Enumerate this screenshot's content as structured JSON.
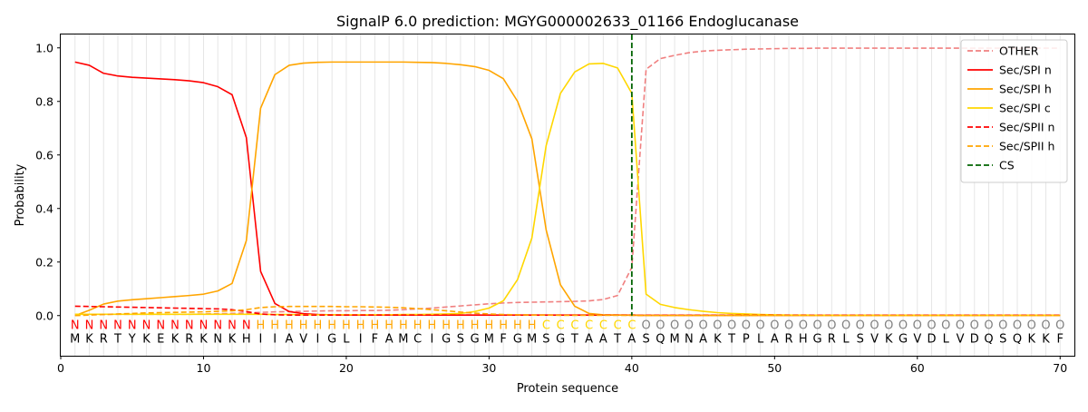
{
  "chart_data": {
    "type": "line",
    "title": "SignalP 6.0 prediction: MGYG000002633_01166 Endoglucanase",
    "xlabel": "Protein sequence",
    "ylabel": "Probability",
    "xlim": [
      0,
      71
    ],
    "ylim": [
      -0.15,
      1.05
    ],
    "x_ticks": [
      "0",
      "10",
      "20",
      "30",
      "40",
      "50",
      "60",
      "70"
    ],
    "y_ticks": [
      "0.0",
      "0.2",
      "0.4",
      "0.6",
      "0.8",
      "1.0"
    ],
    "grid": "vertical lines at every residue",
    "legend_position": "top-right",
    "sequence": [
      "M",
      "K",
      "R",
      "T",
      "Y",
      "K",
      "E",
      "K",
      "R",
      "K",
      "N",
      "K",
      "H",
      "I",
      "I",
      "A",
      "V",
      "I",
      "G",
      "L",
      "I",
      "F",
      "A",
      "M",
      "C",
      "I",
      "G",
      "S",
      "G",
      "M",
      "F",
      "G",
      "M",
      "S",
      "G",
      "T",
      "A",
      "A",
      "T",
      "A",
      "S",
      "Q",
      "M",
      "N",
      "A",
      "K",
      "T",
      "P",
      "L",
      "A",
      "R",
      "H",
      "G",
      "R",
      "L",
      "S",
      "V",
      "K",
      "G",
      "V",
      "D",
      "L",
      "V",
      "D",
      "Q",
      "S",
      "Q",
      "K",
      "K",
      "F"
    ],
    "region_labels": [
      "N",
      "N",
      "N",
      "N",
      "N",
      "N",
      "N",
      "N",
      "N",
      "N",
      "N",
      "N",
      "N",
      "H",
      "H",
      "H",
      "H",
      "H",
      "H",
      "H",
      "H",
      "H",
      "H",
      "H",
      "H",
      "H",
      "H",
      "H",
      "H",
      "H",
      "H",
      "H",
      "H",
      "C",
      "C",
      "C",
      "C",
      "C",
      "C",
      "C",
      "O",
      "O",
      "O",
      "O",
      "O",
      "O",
      "O",
      "O",
      "O",
      "O",
      "O",
      "O",
      "O",
      "O",
      "O",
      "O",
      "O",
      "O",
      "O",
      "O",
      "O",
      "O",
      "O",
      "O",
      "O",
      "O",
      "O",
      "O",
      "O",
      "O"
    ],
    "region_colors": {
      "N": "#ff0000",
      "H": "#ffa500",
      "C": "#ffd700",
      "O": "#808080"
    },
    "cleavage_site": 40,
    "series": [
      {
        "name": "OTHER",
        "color": "#f08080",
        "dashed": true,
        "values": [
          0.005,
          0.005,
          0.005,
          0.005,
          0.005,
          0.005,
          0.005,
          0.005,
          0.005,
          0.006,
          0.007,
          0.008,
          0.01,
          0.012,
          0.014,
          0.015,
          0.016,
          0.017,
          0.018,
          0.018,
          0.019,
          0.019,
          0.02,
          0.022,
          0.025,
          0.028,
          0.032,
          0.036,
          0.04,
          0.044,
          0.047,
          0.049,
          0.05,
          0.051,
          0.052,
          0.053,
          0.055,
          0.06,
          0.075,
          0.18,
          0.92,
          0.96,
          0.972,
          0.982,
          0.988,
          0.991,
          0.993,
          0.995,
          0.996,
          0.997,
          0.998,
          0.998,
          0.999,
          0.999,
          0.999,
          0.999,
          0.999,
          0.999,
          0.999,
          0.999,
          0.999,
          0.999,
          0.999,
          0.999,
          0.999,
          0.999,
          0.999,
          0.999,
          0.999,
          0.999
        ]
      },
      {
        "name": "Sec/SPI n",
        "color": "#ff0000",
        "dashed": false,
        "values": [
          0.947,
          0.935,
          0.905,
          0.895,
          0.89,
          0.887,
          0.884,
          0.881,
          0.877,
          0.87,
          0.855,
          0.825,
          0.665,
          0.165,
          0.045,
          0.015,
          0.007,
          0.004,
          0.003,
          0.002,
          0.002,
          0.002,
          0.002,
          0.002,
          0.002,
          0.002,
          0.002,
          0.002,
          0.002,
          0.002,
          0.002,
          0.002,
          0.002,
          0.002,
          0.002,
          0.002,
          0.002,
          0.002,
          0.002,
          0.002,
          0.001,
          0.001,
          0.001,
          0.001,
          0.001,
          0.001,
          0.001,
          0.001,
          0.001,
          0.001,
          0.001,
          0.001,
          0.001,
          0.001,
          0.001,
          0.001,
          0.001,
          0.001,
          0.001,
          0.001,
          0.001,
          0.001,
          0.001,
          0.001,
          0.001,
          0.001,
          0.001,
          0.001,
          0.001,
          0.001
        ]
      },
      {
        "name": "Sec/SPI h",
        "color": "#ffa500",
        "dashed": false,
        "values": [
          0.0,
          0.02,
          0.043,
          0.054,
          0.059,
          0.063,
          0.067,
          0.071,
          0.075,
          0.08,
          0.092,
          0.12,
          0.28,
          0.775,
          0.9,
          0.935,
          0.943,
          0.946,
          0.947,
          0.947,
          0.947,
          0.947,
          0.947,
          0.947,
          0.946,
          0.945,
          0.942,
          0.937,
          0.93,
          0.916,
          0.885,
          0.8,
          0.66,
          0.32,
          0.115,
          0.035,
          0.008,
          0.003,
          0.002,
          0.001,
          0.001,
          0.001,
          0.001,
          0.001,
          0.001,
          0.001,
          0.001,
          0.001,
          0.001,
          0.001,
          0.001,
          0.001,
          0.001,
          0.001,
          0.001,
          0.001,
          0.001,
          0.001,
          0.001,
          0.001,
          0.001,
          0.001,
          0.001,
          0.001,
          0.001,
          0.001,
          0.001,
          0.001,
          0.001,
          0.001
        ]
      },
      {
        "name": "Sec/SPI c",
        "color": "#ffd700",
        "dashed": false,
        "values": [
          0.005,
          0.005,
          0.005,
          0.005,
          0.005,
          0.005,
          0.005,
          0.005,
          0.005,
          0.005,
          0.005,
          0.005,
          0.005,
          0.005,
          0.004,
          0.004,
          0.003,
          0.003,
          0.003,
          0.003,
          0.003,
          0.003,
          0.003,
          0.004,
          0.004,
          0.005,
          0.006,
          0.008,
          0.015,
          0.028,
          0.055,
          0.135,
          0.29,
          0.635,
          0.83,
          0.91,
          0.94,
          0.942,
          0.925,
          0.83,
          0.08,
          0.042,
          0.03,
          0.022,
          0.016,
          0.011,
          0.008,
          0.006,
          0.004,
          0.003,
          0.002,
          0.002,
          0.001,
          0.001,
          0.001,
          0.001,
          0.001,
          0.001,
          0.001,
          0.001,
          0.001,
          0.001,
          0.001,
          0.001,
          0.001,
          0.001,
          0.001,
          0.001,
          0.001,
          0.001
        ]
      },
      {
        "name": "Sec/SPII n",
        "color": "#ff0000",
        "dashed": true,
        "values": [
          0.035,
          0.034,
          0.033,
          0.032,
          0.031,
          0.03,
          0.029,
          0.028,
          0.027,
          0.026,
          0.025,
          0.022,
          0.015,
          0.006,
          0.003,
          0.002,
          0.002,
          0.002,
          0.002,
          0.002,
          0.002,
          0.002,
          0.002,
          0.002,
          0.002,
          0.002,
          0.002,
          0.002,
          0.002,
          0.002,
          0.002,
          0.002,
          0.002,
          0.002,
          0.002,
          0.002,
          0.002,
          0.002,
          0.002,
          0.002,
          0.001,
          0.001,
          0.001,
          0.001,
          0.001,
          0.001,
          0.001,
          0.001,
          0.001,
          0.001,
          0.001,
          0.001,
          0.001,
          0.001,
          0.001,
          0.001,
          0.001,
          0.001,
          0.001,
          0.001,
          0.001,
          0.001,
          0.001,
          0.001,
          0.001,
          0.001,
          0.001,
          0.001,
          0.001,
          0.001
        ]
      },
      {
        "name": "Sec/SPII h",
        "color": "#ffa500",
        "dashed": true,
        "values": [
          0.0,
          0.002,
          0.004,
          0.006,
          0.008,
          0.01,
          0.011,
          0.012,
          0.013,
          0.014,
          0.016,
          0.018,
          0.022,
          0.03,
          0.033,
          0.034,
          0.034,
          0.034,
          0.034,
          0.033,
          0.033,
          0.032,
          0.031,
          0.029,
          0.026,
          0.022,
          0.018,
          0.013,
          0.009,
          0.006,
          0.004,
          0.003,
          0.002,
          0.002,
          0.001,
          0.001,
          0.001,
          0.001,
          0.001,
          0.001,
          0.0,
          0.0,
          0.0,
          0.0,
          0.0,
          0.0,
          0.0,
          0.0,
          0.0,
          0.0,
          0.0,
          0.0,
          0.0,
          0.0,
          0.0,
          0.0,
          0.0,
          0.0,
          0.0,
          0.0,
          0.0,
          0.0,
          0.0,
          0.0,
          0.0,
          0.0,
          0.0,
          0.0,
          0.0,
          0.0
        ]
      }
    ],
    "cs_legend": {
      "name": "CS",
      "color": "#006400",
      "dashed": true
    }
  }
}
